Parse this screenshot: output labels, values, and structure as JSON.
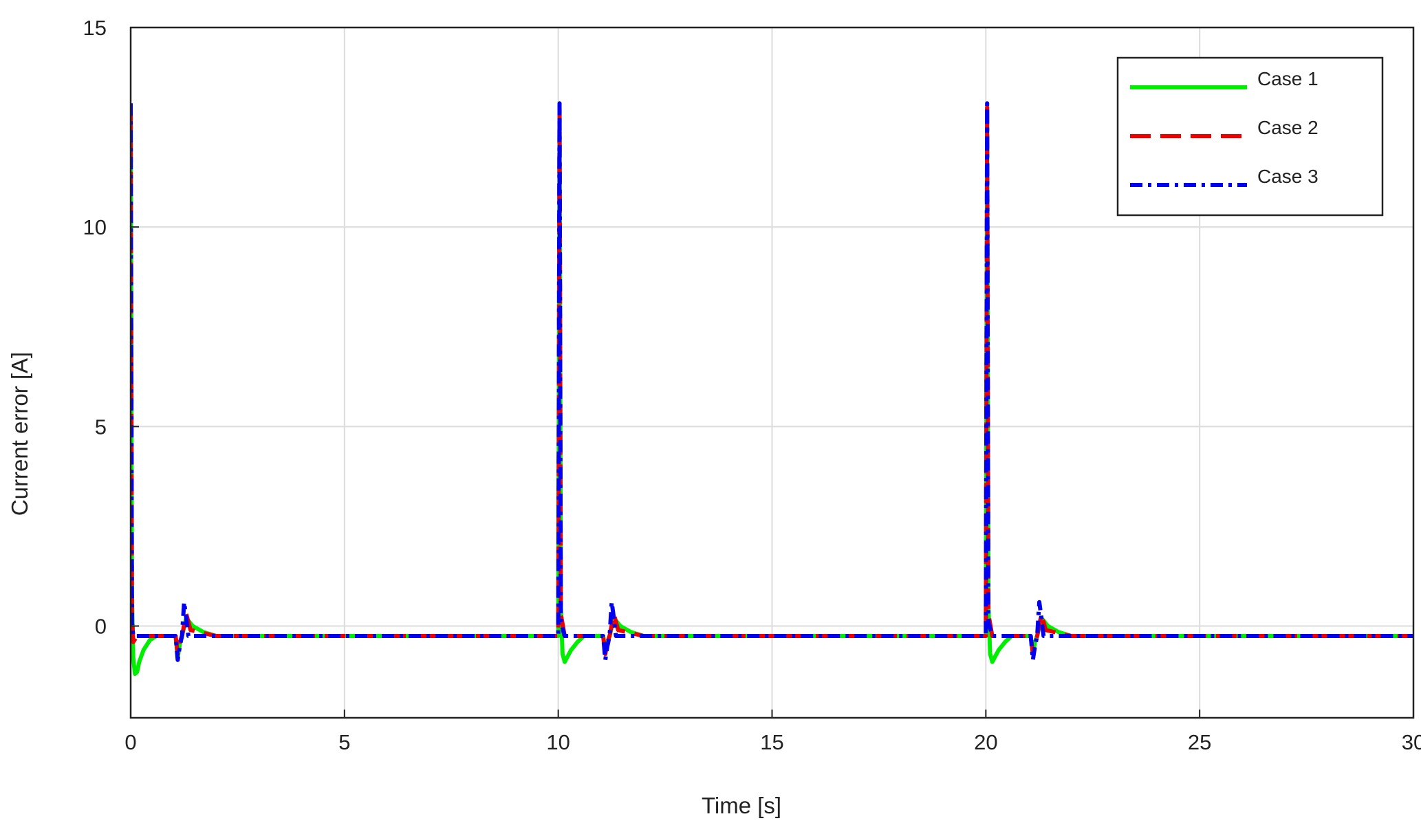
{
  "chart_data": {
    "type": "line",
    "title": "",
    "xlabel": "Time [s]",
    "ylabel": "Current error [A]",
    "xlim": [
      0,
      30
    ],
    "ylim": [
      -2.3,
      15
    ],
    "xticks": [
      0,
      5,
      10,
      15,
      20,
      25,
      30
    ],
    "yticks": [
      0,
      5,
      10,
      15
    ],
    "grid": true,
    "legend_position": "top-right",
    "series": [
      {
        "name": "Case 1",
        "color": "#00ee00",
        "style": "solid",
        "x": [
          0,
          0.03,
          0.06,
          0.1,
          0.15,
          0.2,
          0.3,
          0.45,
          0.6,
          1.05,
          1.1,
          1.15,
          1.2,
          1.3,
          1.45,
          1.7,
          2.0,
          10.0,
          10.03,
          10.06,
          10.1,
          10.15,
          10.2,
          10.3,
          10.45,
          10.6,
          11.05,
          11.1,
          11.15,
          11.2,
          11.3,
          11.45,
          11.7,
          12.0,
          20.0,
          20.03,
          20.06,
          20.1,
          20.15,
          20.2,
          20.3,
          20.45,
          20.6,
          21.05,
          21.1,
          21.15,
          21.2,
          21.3,
          21.45,
          21.7,
          22.0,
          30.0
        ],
        "y": [
          13.0,
          0.8,
          -0.8,
          -1.2,
          -1.15,
          -0.9,
          -0.6,
          -0.35,
          -0.25,
          -0.25,
          -0.8,
          -0.45,
          -0.25,
          0.2,
          0.0,
          -0.15,
          -0.25,
          -0.25,
          13.0,
          0.5,
          -0.7,
          -0.9,
          -0.8,
          -0.6,
          -0.4,
          -0.25,
          -0.25,
          -0.7,
          -0.4,
          -0.25,
          0.2,
          0.0,
          -0.15,
          -0.25,
          -0.25,
          13.0,
          0.5,
          -0.7,
          -0.9,
          -0.8,
          -0.6,
          -0.4,
          -0.25,
          -0.25,
          -0.7,
          -0.4,
          -0.25,
          0.2,
          0.0,
          -0.15,
          -0.25,
          -0.25
        ]
      },
      {
        "name": "Case 2",
        "color": "#ee0000",
        "style": "dash",
        "x": [
          0,
          0.03,
          0.06,
          0.15,
          1.05,
          1.1,
          1.15,
          1.2,
          1.3,
          1.4,
          2.0,
          10.0,
          10.03,
          10.06,
          10.15,
          11.05,
          11.1,
          11.15,
          11.2,
          11.3,
          11.4,
          12.0,
          20.0,
          20.03,
          20.06,
          20.15,
          21.05,
          21.1,
          21.15,
          21.2,
          21.3,
          21.4,
          22.0,
          30.0
        ],
        "y": [
          12.9,
          0.3,
          -0.4,
          -0.25,
          -0.25,
          -0.7,
          -0.4,
          -0.25,
          0.3,
          -0.1,
          -0.25,
          -0.25,
          13.0,
          0.3,
          -0.25,
          -0.25,
          -0.7,
          -0.4,
          -0.25,
          0.3,
          -0.1,
          -0.25,
          -0.25,
          13.0,
          0.3,
          -0.25,
          -0.25,
          -0.7,
          -0.4,
          -0.25,
          0.3,
          -0.1,
          -0.25,
          -0.25
        ]
      },
      {
        "name": "Case 3",
        "color": "#0000ee",
        "style": "dashdot",
        "x": [
          0,
          0.03,
          0.06,
          0.15,
          1.05,
          1.1,
          1.15,
          1.2,
          1.25,
          1.3,
          1.35,
          2.0,
          10.0,
          10.03,
          10.06,
          10.15,
          11.05,
          11.1,
          11.15,
          11.2,
          11.25,
          11.3,
          11.35,
          12.0,
          20.0,
          20.03,
          20.06,
          20.15,
          21.05,
          21.1,
          21.15,
          21.2,
          21.25,
          21.3,
          21.35,
          22.0,
          30.0
        ],
        "y": [
          13.1,
          0.1,
          -0.25,
          -0.25,
          -0.25,
          -0.85,
          -0.5,
          -0.25,
          0.6,
          0.2,
          -0.25,
          -0.25,
          -0.25,
          13.1,
          0.1,
          -0.25,
          -0.25,
          -0.85,
          -0.5,
          -0.25,
          0.6,
          0.2,
          -0.25,
          -0.25,
          -0.25,
          13.1,
          0.1,
          -0.25,
          -0.25,
          -0.85,
          -0.5,
          -0.25,
          0.6,
          0.2,
          -0.25,
          -0.25,
          -0.25
        ]
      }
    ]
  }
}
